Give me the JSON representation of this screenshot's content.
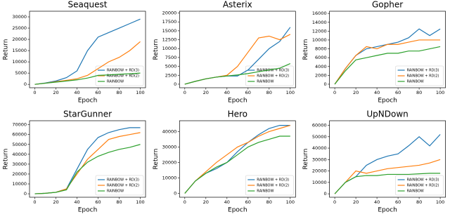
{
  "chart_data": [
    {
      "type": "line",
      "title": "Seaquest",
      "x_label": "Epoch",
      "y_label": "Return",
      "x": [
        0,
        10,
        20,
        30,
        40,
        50,
        60,
        70,
        80,
        90,
        100
      ],
      "xlim": [
        -5,
        105
      ],
      "xticks": [
        0,
        20,
        40,
        60,
        80,
        100
      ],
      "ylim": [
        -1500,
        32500
      ],
      "yticks": [
        0,
        5000,
        10000,
        15000,
        20000,
        25000,
        30000
      ],
      "legend": "lower right",
      "series": [
        {
          "name": "RAINBOW + RD(3)",
          "color": "#1f77b4",
          "values": [
            0,
            600,
            1500,
            3000,
            6000,
            15000,
            21000,
            23000,
            25000,
            27000,
            29000
          ]
        },
        {
          "name": "RAINBOW + RD(2)",
          "color": "#ff7f0e",
          "values": [
            0,
            500,
            1200,
            1800,
            2500,
            4000,
            7000,
            10000,
            12000,
            15000,
            19000
          ]
        },
        {
          "name": "RAINBOW",
          "color": "#2ca02c",
          "values": [
            0,
            500,
            1000,
            1500,
            2000,
            2800,
            4000,
            4200,
            4500,
            4700,
            5000
          ]
        }
      ]
    },
    {
      "type": "line",
      "title": "Asterix",
      "x_label": "Epoch",
      "y_label": "Return",
      "x": [
        0,
        10,
        20,
        30,
        40,
        50,
        60,
        70,
        80,
        90,
        100
      ],
      "xlim": [
        -5,
        105
      ],
      "xticks": [
        0,
        20,
        40,
        60,
        80,
        100
      ],
      "ylim": [
        -1000,
        20500
      ],
      "yticks": [
        0,
        2500,
        5000,
        7500,
        10000,
        12500,
        15000,
        17500,
        20000
      ],
      "legend": "lower right",
      "series": [
        {
          "name": "RAINBOW + RD(3)",
          "color": "#1f77b4",
          "values": [
            0,
            800,
            1500,
            2000,
            2300,
            2300,
            4000,
            7000,
            10000,
            12000,
            16000
          ]
        },
        {
          "name": "RAINBOW + RD(2)",
          "color": "#ff7f0e",
          "values": [
            0,
            800,
            1500,
            2000,
            2500,
            5000,
            9000,
            13000,
            13500,
            12500,
            14000
          ]
        },
        {
          "name": "RAINBOW",
          "color": "#2ca02c",
          "values": [
            0,
            800,
            1500,
            2000,
            2300,
            2600,
            3000,
            3500,
            4000,
            4500,
            5800
          ]
        }
      ]
    },
    {
      "type": "line",
      "title": "Gopher",
      "x_label": "Epoch",
      "y_label": "Return",
      "x": [
        0,
        10,
        20,
        30,
        40,
        50,
        60,
        70,
        80,
        90,
        100
      ],
      "xlim": [
        -5,
        105
      ],
      "xticks": [
        0,
        20,
        40,
        60,
        80,
        100
      ],
      "ylim": [
        -800,
        16500
      ],
      "yticks": [
        0,
        2000,
        4000,
        6000,
        8000,
        10000,
        12000,
        14000,
        16000
      ],
      "legend": "lower right",
      "series": [
        {
          "name": "RAINBOW + RD(3)",
          "color": "#1f77b4",
          "values": [
            0,
            3500,
            6500,
            8000,
            8500,
            9000,
            9500,
            10500,
            12500,
            11000,
            12500
          ]
        },
        {
          "name": "RAINBOW + RD(2)",
          "color": "#ff7f0e",
          "values": [
            0,
            3500,
            6500,
            8500,
            8000,
            9000,
            9000,
            9500,
            10000,
            10000,
            10000
          ]
        },
        {
          "name": "RAINBOW",
          "color": "#2ca02c",
          "values": [
            0,
            3000,
            5500,
            6000,
            6500,
            7000,
            7000,
            7500,
            7500,
            8000,
            8500
          ]
        }
      ]
    },
    {
      "type": "line",
      "title": "StarGunner",
      "x_label": "Epoch",
      "y_label": "Return",
      "x": [
        0,
        10,
        20,
        30,
        40,
        50,
        60,
        70,
        80,
        90,
        100
      ],
      "xlim": [
        -5,
        105
      ],
      "xticks": [
        0,
        20,
        40,
        60,
        80,
        100
      ],
      "ylim": [
        -3500,
        74000
      ],
      "yticks": [
        0,
        10000,
        20000,
        30000,
        40000,
        50000,
        60000,
        70000
      ],
      "legend": "lower right",
      "series": [
        {
          "name": "RAINBOW + RD(3)",
          "color": "#1f77b4",
          "values": [
            0,
            500,
            1500,
            5000,
            25000,
            45000,
            57000,
            62000,
            65000,
            67000,
            67000
          ]
        },
        {
          "name": "RAINBOW + RD(2)",
          "color": "#ff7f0e",
          "values": [
            0,
            500,
            1500,
            5000,
            20000,
            35000,
            45000,
            55000,
            58000,
            60000,
            62000
          ]
        },
        {
          "name": "RAINBOW",
          "color": "#2ca02c",
          "values": [
            0,
            500,
            1500,
            4000,
            22000,
            32000,
            38000,
            42000,
            45000,
            47000,
            50000
          ]
        }
      ]
    },
    {
      "type": "line",
      "title": "Hero",
      "x_label": "Epoch",
      "y_label": "Return",
      "x": [
        0,
        10,
        20,
        30,
        40,
        50,
        60,
        70,
        80,
        90,
        100
      ],
      "xlim": [
        -5,
        105
      ],
      "xticks": [
        0,
        20,
        40,
        60,
        80,
        100
      ],
      "ylim": [
        -2500,
        47000
      ],
      "yticks": [
        0,
        10000,
        20000,
        30000,
        40000
      ],
      "legend": "lower right",
      "series": [
        {
          "name": "RAINBOW + RD(3)",
          "color": "#1f77b4",
          "values": [
            0,
            8000,
            13000,
            16000,
            20000,
            27000,
            33000,
            38000,
            42000,
            44000,
            44000
          ]
        },
        {
          "name": "RAINBOW + RD(2)",
          "color": "#ff7f0e",
          "values": [
            0,
            8000,
            14000,
            20000,
            25000,
            30000,
            33000,
            37000,
            40000,
            42000,
            44000
          ]
        },
        {
          "name": "RAINBOW",
          "color": "#2ca02c",
          "values": [
            0,
            8000,
            13000,
            17000,
            20000,
            25000,
            30000,
            33000,
            35000,
            37000,
            37000
          ]
        }
      ]
    },
    {
      "type": "line",
      "title": "UpNDown",
      "x_label": "Epoch",
      "y_label": "Return",
      "x": [
        0,
        10,
        20,
        30,
        40,
        50,
        60,
        70,
        80,
        90,
        100
      ],
      "xlim": [
        -5,
        105
      ],
      "xticks": [
        0,
        20,
        40,
        60,
        80,
        100
      ],
      "ylim": [
        -3000,
        64000
      ],
      "yticks": [
        0,
        10000,
        20000,
        30000,
        40000,
        50000,
        60000
      ],
      "legend": "lower right",
      "series": [
        {
          "name": "RAINBOW + RD(3)",
          "color": "#1f77b4",
          "values": [
            0,
            10000,
            15000,
            25000,
            30000,
            33000,
            35000,
            42000,
            50000,
            42000,
            52000
          ]
        },
        {
          "name": "RAINBOW + RD(2)",
          "color": "#ff7f0e",
          "values": [
            0,
            10000,
            20000,
            18000,
            20000,
            22000,
            23000,
            24000,
            25000,
            27000,
            30000
          ]
        },
        {
          "name": "RAINBOW",
          "color": "#2ca02c",
          "values": [
            0,
            10000,
            15000,
            16000,
            16000,
            17000,
            17000,
            17000,
            17500,
            18000,
            18000
          ]
        }
      ]
    }
  ]
}
